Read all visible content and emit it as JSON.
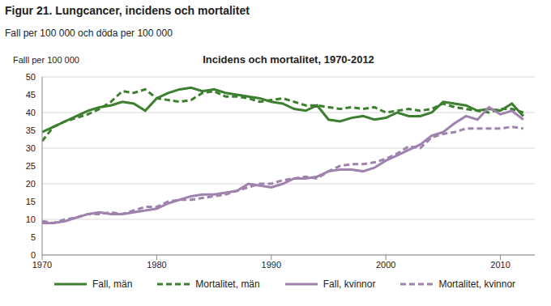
{
  "chart_data": {
    "type": "line",
    "title": "Figur 21. Lungcancer, incidens och mortalitet",
    "subtitle": "Fall per 100 000 och döda per 100 000",
    "plot_title": "Incidens och mortalitet, 1970-2012",
    "ylabel": "Falll per 100 000",
    "x": [
      1970,
      1971,
      1972,
      1973,
      1974,
      1975,
      1976,
      1977,
      1978,
      1979,
      1980,
      1981,
      1982,
      1983,
      1984,
      1985,
      1986,
      1987,
      1988,
      1989,
      1990,
      1991,
      1992,
      1993,
      1994,
      1995,
      1996,
      1997,
      1998,
      1999,
      2000,
      2001,
      2002,
      2003,
      2004,
      2005,
      2006,
      2007,
      2008,
      2009,
      2010,
      2011,
      2012
    ],
    "series": [
      {
        "name": "Fall, män",
        "color": "#3b7f2f",
        "line_style": "solid",
        "values": [
          34.5,
          36,
          37.5,
          39,
          40.5,
          41.5,
          42,
          43,
          42.5,
          40.5,
          44,
          45.5,
          46.5,
          47,
          46,
          46.5,
          45.5,
          45,
          44.5,
          44,
          43,
          42.5,
          41,
          40.5,
          42,
          38,
          37.5,
          38.5,
          39,
          38,
          38.5,
          40,
          39,
          39,
          40,
          43,
          42.5,
          42,
          40.5,
          41,
          40.5,
          42.5,
          39
        ]
      },
      {
        "name": "Mortalitet, män",
        "color": "#3b7f2f",
        "line_style": "dashed",
        "values": [
          32,
          36,
          37.5,
          38.5,
          39.5,
          41,
          43,
          46,
          45.5,
          46.5,
          44,
          43.5,
          43,
          43.5,
          45.5,
          46,
          44.5,
          44.5,
          44,
          43,
          43.5,
          44,
          43,
          42,
          42,
          41.5,
          41,
          41.5,
          41,
          41.5,
          40,
          40.5,
          41,
          40.5,
          41,
          42.5,
          41.5,
          41,
          40.5,
          40,
          41,
          41,
          40
        ]
      },
      {
        "name": "Fall, kvinnor",
        "color": "#9f82ad",
        "line_style": "solid",
        "values": [
          9,
          9,
          9.5,
          10.5,
          11.5,
          12,
          11.5,
          11.5,
          12,
          12.5,
          13,
          14.5,
          15.5,
          16.5,
          17,
          17,
          17.5,
          18,
          20,
          19.5,
          19,
          20,
          21.5,
          21.5,
          22,
          23.5,
          24,
          24,
          23.5,
          24.5,
          26.5,
          28,
          29.5,
          31,
          33.5,
          34.5,
          37,
          39,
          38,
          41.5,
          39.5,
          40.5,
          38
        ]
      },
      {
        "name": "Mortalitet, kvinnor",
        "color": "#9f82ad",
        "line_style": "dashed",
        "values": [
          9.5,
          9,
          10,
          10.5,
          11.5,
          11.5,
          12,
          11.5,
          12.5,
          13.5,
          13.5,
          15,
          15.5,
          15.5,
          16,
          16.5,
          17,
          18,
          19,
          20,
          20,
          21,
          21.5,
          22,
          21.5,
          23.5,
          25,
          25.5,
          25.5,
          26,
          27,
          28.5,
          30.5,
          30,
          33,
          34,
          34.5,
          35.5,
          35.5,
          35.5,
          35.5,
          36,
          35.5
        ]
      }
    ],
    "xlim": [
      1970,
      2013
    ],
    "xticks": [
      1970,
      1980,
      1990,
      2000,
      2010
    ],
    "ylim": [
      0,
      50
    ],
    "yticks": [
      0,
      5,
      10,
      15,
      20,
      25,
      30,
      35,
      40,
      45,
      50
    ],
    "grid": true,
    "legend": "bottom"
  }
}
